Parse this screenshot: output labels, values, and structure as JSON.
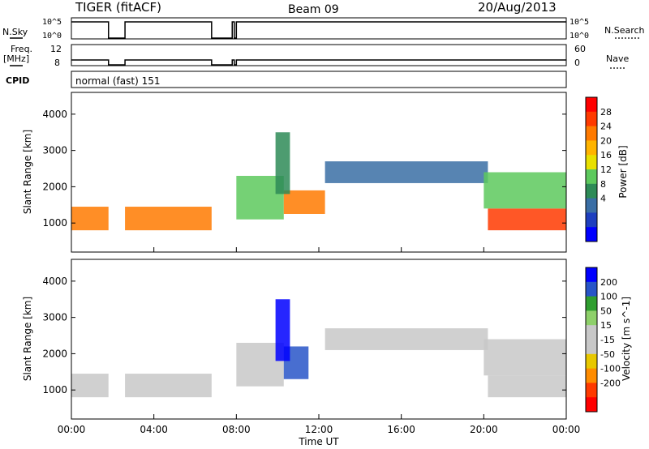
{
  "header": {
    "radar": "TIGER (fitACF)",
    "beam": "Beam 09",
    "date": "20/Aug/2013"
  },
  "panels": {
    "nsky_label": "N.Sky",
    "nsearch_label": "N.Search",
    "freq_label_line1": "Freq.",
    "freq_label_line2": "[MHz]",
    "nave_label": "Nave",
    "cpid_label": "CPID",
    "cpid_value": "normal (fast) 151",
    "noise_ticks_left": [
      "10^5",
      "10^0"
    ],
    "noise_ticks_right": [
      "10^5",
      "10^0"
    ],
    "freq_ticks_left": [
      "12",
      "8"
    ],
    "nave_ticks_right": [
      "60",
      "0"
    ]
  },
  "chart_data": [
    {
      "type": "heatmap",
      "name": "power",
      "ylabel": "Slant Range [km]",
      "colorbar_label": "Power [dB]",
      "colorbar_ticks": [
        "28",
        "24",
        "20",
        "16",
        "12",
        "8",
        "4"
      ],
      "colorbar_colors": [
        "#ff0000",
        "#ff3a00",
        "#ff7a00",
        "#ffb400",
        "#e8e000",
        "#5dc95d",
        "#2e8b57",
        "#3a6ea5",
        "#1e3fbf",
        "#0000ff"
      ],
      "ylim": [
        200,
        4600
      ],
      "yticks": [
        "4000",
        "3000",
        "2000",
        "1000"
      ],
      "bands": [
        {
          "x0": 0.0,
          "x1": 1.8,
          "r0": 800,
          "r1": 1450,
          "value": 24
        },
        {
          "x0": 2.6,
          "x1": 6.8,
          "r0": 800,
          "r1": 1450,
          "value": 24
        },
        {
          "x0": 8.0,
          "x1": 10.3,
          "r0": 1100,
          "r1": 2300,
          "value": 12
        },
        {
          "x0": 10.3,
          "x1": 12.3,
          "r0": 1250,
          "r1": 1900,
          "value": 24
        },
        {
          "x0": 9.9,
          "x1": 10.6,
          "r0": 1800,
          "r1": 3500,
          "value": 10
        },
        {
          "x0": 12.3,
          "x1": 20.2,
          "r0": 2100,
          "r1": 2700,
          "value": 6
        },
        {
          "x0": 20.2,
          "x1": 24.0,
          "r0": 800,
          "r1": 1400,
          "value": 28
        },
        {
          "x0": 20.0,
          "x1": 24.0,
          "r0": 1400,
          "r1": 2400,
          "value": 12
        }
      ]
    },
    {
      "type": "heatmap",
      "name": "velocity",
      "ylabel": "Slant Range [km]",
      "xlabel": "Time UT",
      "colorbar_label": "Velocity [m s^-1]",
      "colorbar_ticks": [
        "200",
        "100",
        "50",
        "15",
        "-15",
        "-50",
        "-100",
        "-200"
      ],
      "colorbar_colors": [
        "#0000ff",
        "#2855c8",
        "#2f9e2f",
        "#8ed06a",
        "#c8c8c8",
        "#c8c8c8",
        "#e8c800",
        "#ff8c00",
        "#ff3a00",
        "#ff0000"
      ],
      "ylim": [
        200,
        4600
      ],
      "yticks": [
        "4000",
        "3000",
        "2000",
        "1000"
      ],
      "xticks": [
        "00:00",
        "04:00",
        "08:00",
        "12:00",
        "16:00",
        "20:00",
        "00:00"
      ],
      "xlim": [
        0,
        24
      ],
      "bands": [
        {
          "x0": 0.0,
          "x1": 1.8,
          "r0": 800,
          "r1": 1450,
          "value": 0
        },
        {
          "x0": 2.6,
          "x1": 6.8,
          "r0": 800,
          "r1": 1450,
          "value": 0
        },
        {
          "x0": 8.0,
          "x1": 10.3,
          "r0": 1100,
          "r1": 2300,
          "value": -20
        },
        {
          "x0": 10.3,
          "x1": 11.5,
          "r0": 1300,
          "r1": 2200,
          "value": 150
        },
        {
          "x0": 9.9,
          "x1": 10.6,
          "r0": 1800,
          "r1": 3500,
          "value": 200
        },
        {
          "x0": 12.3,
          "x1": 20.2,
          "r0": 2100,
          "r1": 2700,
          "value": -5
        },
        {
          "x0": 20.2,
          "x1": 24.0,
          "r0": 800,
          "r1": 1400,
          "value": 0
        },
        {
          "x0": 20.0,
          "x1": 24.0,
          "r0": 1400,
          "r1": 2400,
          "value": -30
        }
      ]
    }
  ]
}
